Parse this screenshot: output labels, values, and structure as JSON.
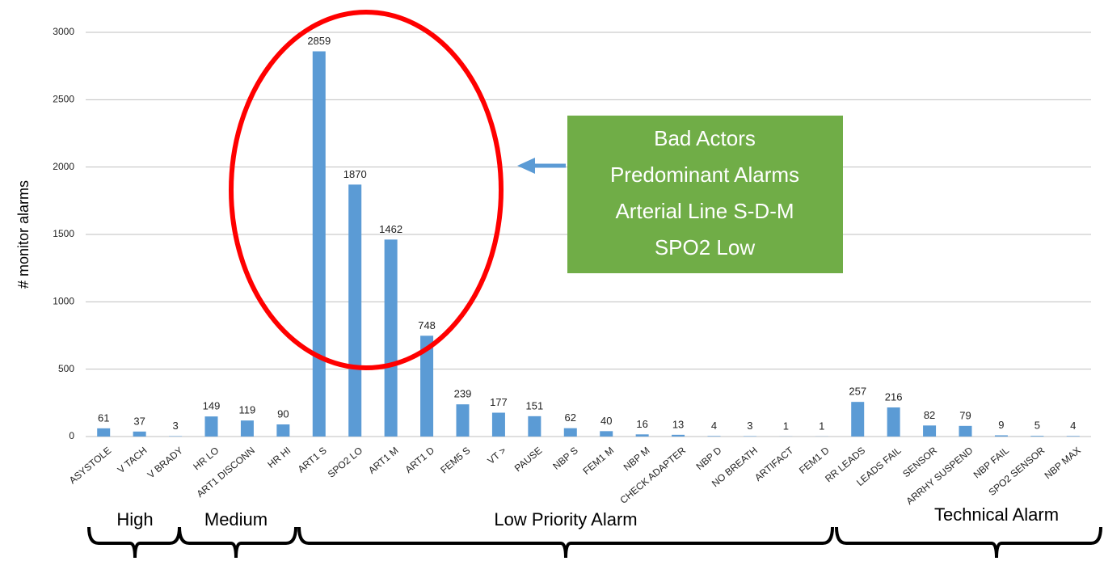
{
  "chart_data": {
    "type": "bar",
    "ylabel": "# monitor alarms",
    "categories": [
      "ASYSTOLE",
      "V TACH",
      "V BRADY",
      "HR LO",
      "ART1 DISCONN",
      "HR HI",
      "ART1 S",
      "SPO2 LO",
      "ART1 M",
      "ART1 D",
      "FEM5 S",
      "VT >",
      "PAUSE",
      "NBP S",
      "FEM1 M",
      "NBP M",
      "CHECK ADAPTER",
      "NBP D",
      "NO BREATH",
      "ARTIFACT",
      "FEM1 D",
      "RR LEADS",
      "LEADS FAIL",
      "SENSOR",
      "ARRHY SUSPEND",
      "NBP FAIL",
      "SPO2 SENSOR",
      "NBP MAX"
    ],
    "values": [
      61,
      37,
      3,
      149,
      119,
      90,
      2859,
      1870,
      1462,
      748,
      239,
      177,
      151,
      62,
      40,
      16,
      13,
      4,
      3,
      1,
      1,
      257,
      216,
      82,
      79,
      9,
      5,
      4
    ],
    "color": "#5b9bd5",
    "ylim": [
      0,
      3000
    ],
    "yticks": [
      0,
      500,
      1000,
      1500,
      2000,
      2500,
      3000
    ],
    "grid": true,
    "groups": [
      "High",
      "Medium",
      "Low Priority Alarm",
      "Technical Alarm"
    ],
    "annotation": [
      "Bad Actors",
      "Predominant Alarms",
      "Arterial Line S-D-M",
      "SPO2 Low"
    ]
  }
}
